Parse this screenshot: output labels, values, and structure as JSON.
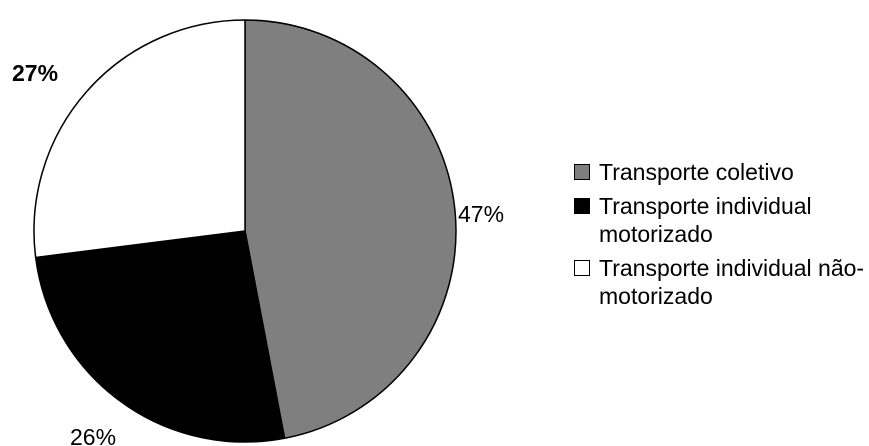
{
  "chart_data": {
    "type": "pie",
    "categories": [
      "Transporte coletivo",
      "Transporte individual motorizado",
      "Transporte individual não-motorizado"
    ],
    "values": [
      47,
      26,
      27
    ],
    "labels": [
      "47%",
      "26%",
      "27%"
    ],
    "colors": [
      "#7f7f7f",
      "#000000",
      "#ffffff"
    ],
    "start": "12 o'clock",
    "direction": "clockwise",
    "legend_position": "right"
  },
  "legend": [
    {
      "text": "Transporte coletivo",
      "color": "#7f7f7f"
    },
    {
      "text": "Transporte individual motorizado",
      "color": "#000000"
    },
    {
      "text": "Transporte individual não-motorizado",
      "color": "#ffffff"
    }
  ]
}
